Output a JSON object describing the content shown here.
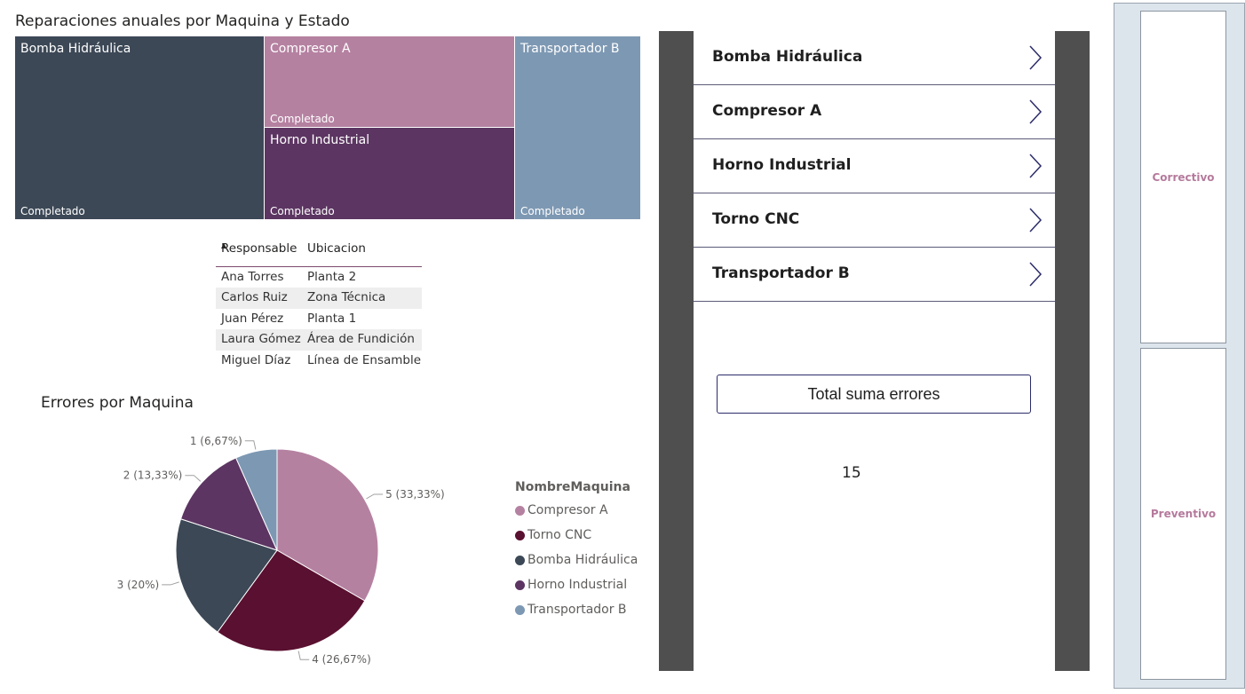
{
  "treemap": {
    "title": "Reparaciones anuales por Maquina y Estado",
    "cells": [
      {
        "label": "Bomba Hidráulica",
        "status": "Completado",
        "color": "#3c4856"
      },
      {
        "label": "Compresor A",
        "status": "Completado",
        "color": "#b581a1"
      },
      {
        "label": "Horno Industrial",
        "status": "Completado",
        "color": "#5c3562"
      },
      {
        "label": "Transportador B",
        "status": "Completado",
        "color": "#7d98b3"
      }
    ]
  },
  "table": {
    "headers": [
      "Responsable",
      "Ubicacion"
    ],
    "sort_indicator": "▲",
    "rows": [
      [
        "Ana Torres",
        "Planta 2"
      ],
      [
        "Carlos Ruiz",
        "Zona Técnica"
      ],
      [
        "Juan Pérez",
        "Planta 1"
      ],
      [
        "Laura Gómez",
        "Área de Fundición"
      ],
      [
        "Miguel Díaz",
        "Línea de Ensamble"
      ]
    ]
  },
  "chart_data": {
    "type": "pie",
    "title": "Errores por Maquina",
    "legend_title": "NombreMaquina",
    "legend_position": "right",
    "slices": [
      {
        "name": "Compresor A",
        "value": 5,
        "label": "5 (33,33%)",
        "color": "#b581a1"
      },
      {
        "name": "Torno CNC",
        "value": 4,
        "label": "4 (26,67%)",
        "color": "#5a1030"
      },
      {
        "name": "Bomba Hidráulica",
        "value": 3,
        "label": "3 (20%)",
        "color": "#3c4856"
      },
      {
        "name": "Horno Industrial",
        "value": 2,
        "label": "2 (13,33%)",
        "color": "#5c3562"
      },
      {
        "name": "Transportador B",
        "value": 1,
        "label": "1 (6,67%)",
        "color": "#7d98b3"
      }
    ]
  },
  "gallery": {
    "items": [
      "Bomba Hidráulica",
      "Compresor A",
      "Horno Industrial",
      "Torno CNC",
      "Transportador B"
    ]
  },
  "total": {
    "button_label": "Total suma errores",
    "value": "15"
  },
  "side_panel": {
    "buttons": [
      "Correctivo",
      "Preventivo"
    ]
  }
}
